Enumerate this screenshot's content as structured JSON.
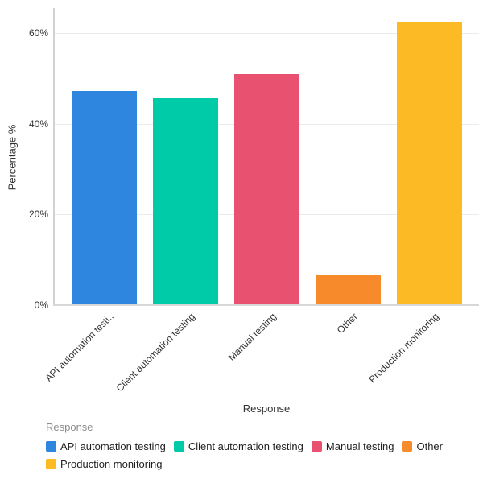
{
  "chart_data": {
    "type": "bar",
    "title": "",
    "xlabel": "Response",
    "ylabel": "Percentage %",
    "categories": [
      "API automation testing",
      "Client automation testing",
      "Manual testing",
      "Other",
      "Production monitoring"
    ],
    "x_tick_labels": [
      "API automation testi..",
      "Client automation testing",
      "Manual testing",
      "Other",
      "Production monitoring"
    ],
    "values": [
      47.2,
      45.7,
      50.9,
      6.6,
      62.4
    ],
    "bar_colors": [
      "#2E86DE",
      "#00CBA9",
      "#E8516F",
      "#F78A2B",
      "#FCBB24"
    ],
    "y_ticks": [
      0,
      20,
      40,
      60
    ],
    "y_tick_labels": [
      "0%",
      "20%",
      "40%",
      "60%"
    ],
    "ylim": [
      0,
      65.5
    ],
    "grid": true,
    "legend": {
      "title": "Response",
      "position": "bottom",
      "entries": [
        {
          "label": "API automation testing",
          "color": "#2E86DE"
        },
        {
          "label": "Client automation testing",
          "color": "#00CBA9"
        },
        {
          "label": "Manual testing",
          "color": "#E8516F"
        },
        {
          "label": "Other",
          "color": "#F78A2B"
        },
        {
          "label": "Production monitoring",
          "color": "#FCBB24"
        }
      ]
    }
  },
  "style_colors": {
    "grid": "#EBEBEB",
    "axis": "#D2D2D2",
    "text": "#333333",
    "legend_title": "#8C8C8C",
    "background": "#FFFFFF"
  }
}
